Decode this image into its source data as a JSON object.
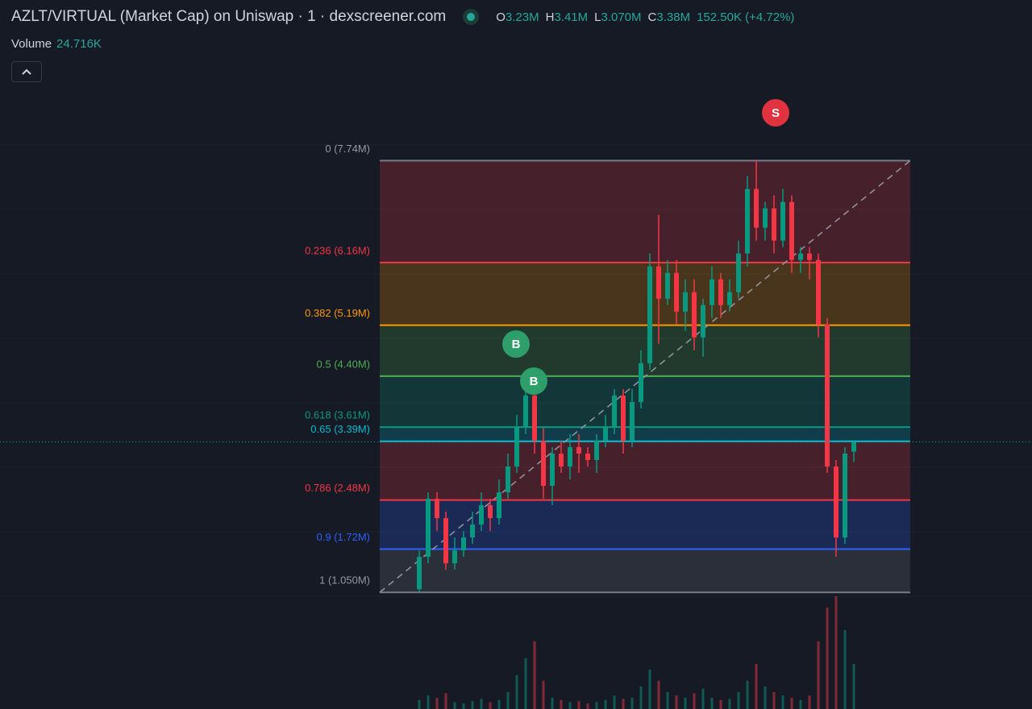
{
  "header": {
    "title": "AZLT/VIRTUAL (Market Cap) on Uniswap · 1 · dexscreener.com",
    "ohlc": [
      {
        "key": "O",
        "value": "3.23M"
      },
      {
        "key": "H",
        "value": "3.41M"
      },
      {
        "key": "L",
        "value": "3.070M"
      },
      {
        "key": "C",
        "value": "3.38M"
      }
    ],
    "change": "152.50K (+4.72%)",
    "volume_label": "Volume",
    "volume_value": "24.716K"
  },
  "chart_data": {
    "type": "candlestick",
    "ylim": [
      0.99,
      8.98
    ],
    "up_color": "#089981",
    "down_color": "#f23645",
    "open": [
      1.1,
      1.6,
      2.5,
      2.2,
      1.5,
      1.7,
      1.9,
      2.1,
      2.4,
      2.2,
      2.6,
      3.0,
      3.6,
      4.1,
      3.4,
      2.7,
      3.2,
      3.0,
      3.3,
      3.2,
      3.1,
      3.4,
      3.6,
      4.1,
      3.4,
      4.0,
      4.6,
      6.1,
      5.6,
      6.0,
      5.4,
      5.7,
      5.0,
      5.5,
      5.9,
      5.5,
      5.7,
      6.3,
      7.3,
      6.7,
      7.0,
      6.5,
      7.1,
      6.2,
      6.3,
      6.2,
      5.2,
      3.0,
      1.9,
      3.23
    ],
    "high": [
      1.7,
      2.6,
      2.6,
      2.3,
      1.9,
      2.0,
      2.3,
      2.6,
      2.5,
      2.8,
      3.2,
      3.8,
      4.4,
      4.2,
      3.6,
      3.3,
      3.4,
      3.5,
      3.5,
      3.3,
      3.5,
      3.8,
      4.2,
      4.2,
      4.2,
      4.8,
      6.3,
      6.9,
      6.2,
      6.2,
      5.9,
      5.9,
      5.6,
      6.1,
      6.0,
      5.9,
      6.5,
      7.5,
      7.74,
      7.1,
      7.2,
      7.3,
      7.2,
      6.4,
      6.4,
      6.3,
      5.3,
      3.1,
      3.3,
      3.41
    ],
    "low": [
      1.05,
      1.5,
      2.0,
      1.4,
      1.4,
      1.6,
      1.8,
      2.0,
      2.0,
      2.1,
      2.5,
      2.9,
      3.5,
      3.2,
      2.5,
      2.4,
      2.9,
      2.8,
      2.9,
      3.0,
      2.9,
      3.3,
      3.5,
      3.2,
      3.3,
      3.9,
      4.5,
      4.9,
      5.5,
      5.2,
      5.1,
      4.8,
      4.7,
      5.3,
      5.3,
      5.4,
      5.6,
      6.1,
      6.5,
      6.5,
      6.3,
      6.4,
      6.0,
      6.0,
      5.9,
      5.0,
      2.9,
      1.6,
      1.8,
      3.07
    ],
    "close": [
      1.6,
      2.5,
      2.2,
      1.5,
      1.7,
      1.9,
      2.1,
      2.4,
      2.2,
      2.6,
      3.0,
      3.6,
      4.1,
      3.4,
      2.7,
      3.2,
      3.0,
      3.3,
      3.2,
      3.1,
      3.4,
      3.6,
      4.1,
      3.4,
      4.0,
      4.6,
      6.1,
      5.6,
      6.0,
      5.4,
      5.7,
      5.0,
      5.5,
      5.9,
      5.5,
      5.7,
      6.3,
      7.3,
      6.7,
      7.0,
      6.5,
      7.1,
      6.2,
      6.3,
      6.2,
      5.2,
      3.0,
      1.9,
      3.2,
      3.38
    ],
    "volume": [
      8,
      12,
      10,
      14,
      6,
      5,
      7,
      9,
      6,
      8,
      15,
      30,
      45,
      60,
      25,
      10,
      8,
      6,
      7,
      5,
      6,
      8,
      12,
      9,
      10,
      20,
      35,
      25,
      15,
      12,
      10,
      14,
      18,
      10,
      8,
      9,
      15,
      25,
      40,
      20,
      15,
      12,
      10,
      8,
      12,
      60,
      90,
      100,
      70,
      40
    ],
    "volume_lim": [
      0,
      100
    ],
    "fib_levels": [
      {
        "value": 7.74,
        "label": "0 (7.74M)",
        "color": "#787b86"
      },
      {
        "value": 6.16,
        "label": "0.236 (6.16M)",
        "color": "#f23645"
      },
      {
        "value": 5.19,
        "label": "0.382 (5.19M)",
        "color": "#ff9800"
      },
      {
        "value": 4.4,
        "label": "0.5 (4.40M)",
        "color": "#4caf50"
      },
      {
        "value": 3.61,
        "label": "0.618 (3.61M)",
        "color": "#089981"
      },
      {
        "value": 3.39,
        "label": "0.65 (3.39M)",
        "color": "#00bcd4"
      },
      {
        "value": 2.48,
        "label": "0.786 (2.48M)",
        "color": "#f23645"
      },
      {
        "value": 1.72,
        "label": "0.9 (1.72M)",
        "color": "#2962ff"
      },
      {
        "value": 1.05,
        "label": "1 (1.050M)",
        "color": "#787b86"
      }
    ],
    "markers": [
      {
        "label": "B",
        "color": "#2e9e6b"
      },
      {
        "label": "B",
        "color": "#2e9e6b"
      },
      {
        "label": "S",
        "color": "#e0323f"
      }
    ]
  }
}
